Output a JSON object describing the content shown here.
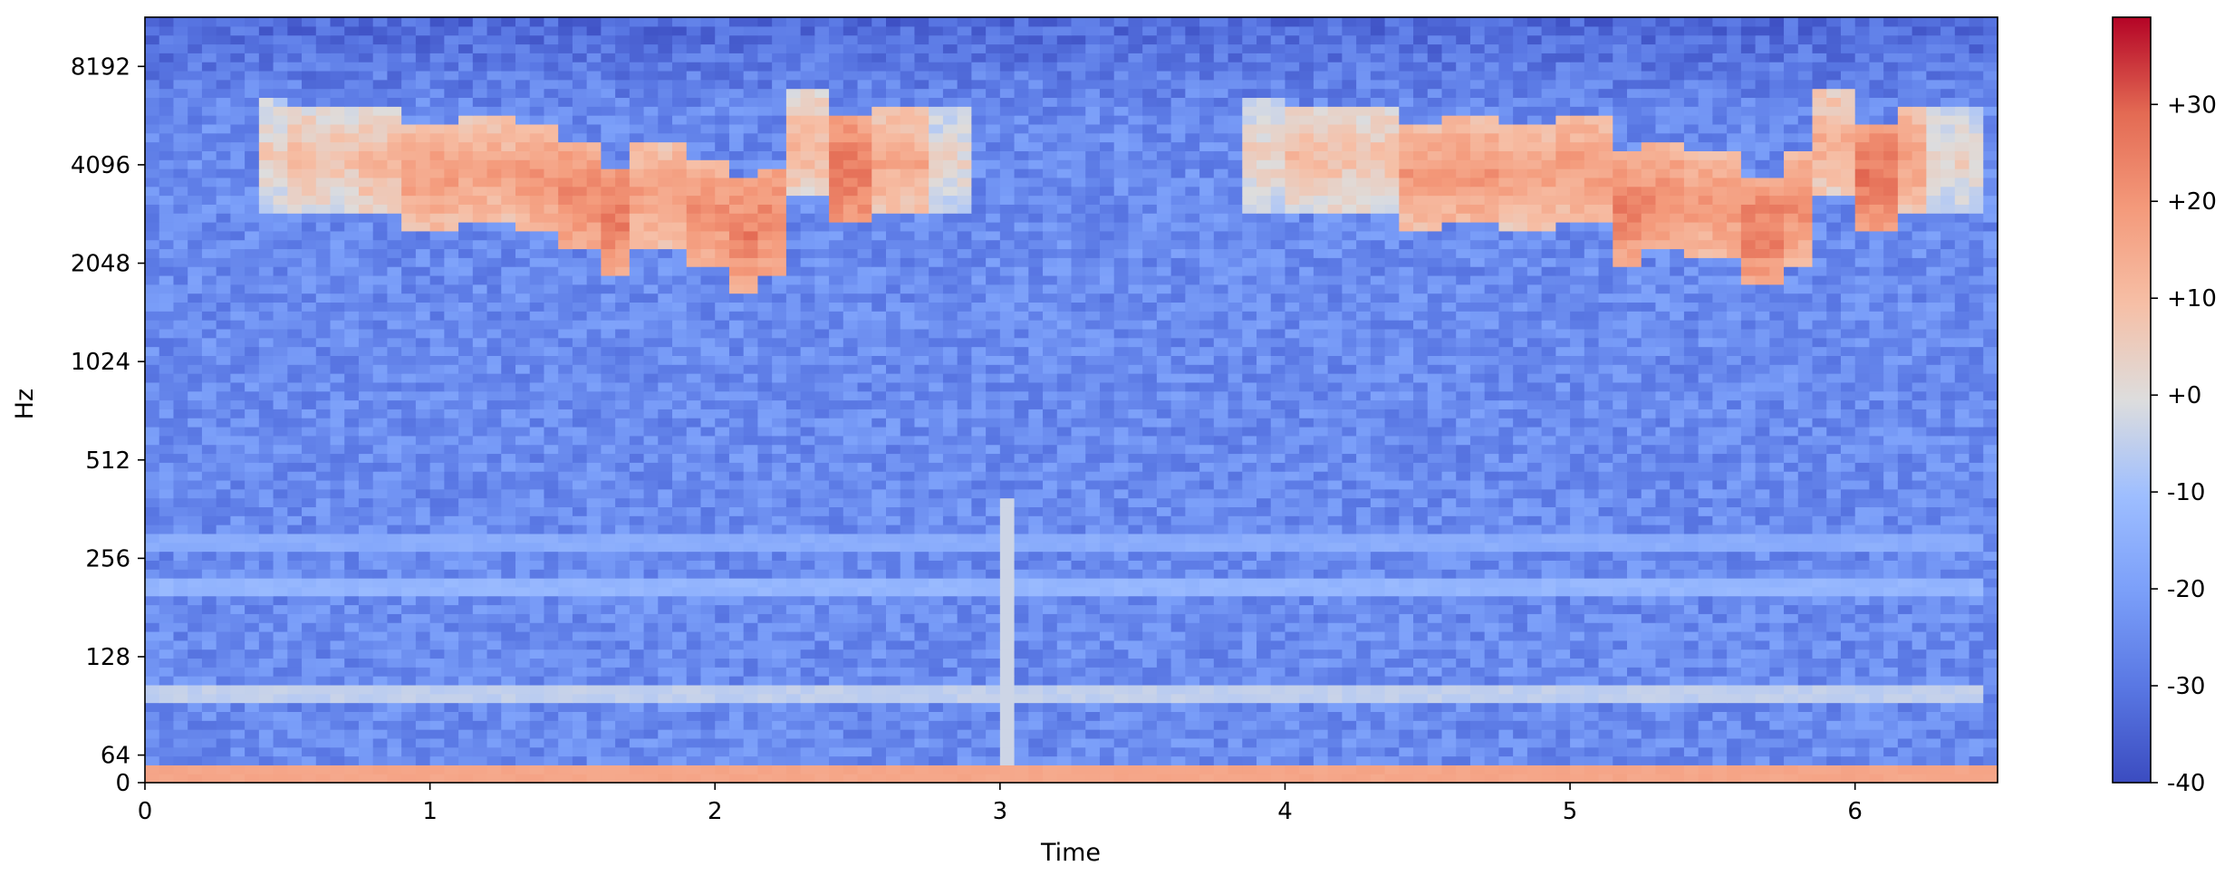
{
  "chart_data": {
    "type": "heatmap",
    "title": "",
    "xlabel": "Time",
    "ylabel": "Hz",
    "x_axis": {
      "range": [
        0,
        6.5
      ],
      "ticks": [
        0,
        1,
        2,
        3,
        4,
        5,
        6
      ],
      "tick_labels": [
        "0",
        "1",
        "2",
        "3",
        "4",
        "5",
        "6"
      ]
    },
    "y_axis": {
      "scale": "log2-with-linear-base",
      "range": [
        0,
        11585
      ],
      "ticks": [
        0,
        64,
        128,
        256,
        512,
        1024,
        2048,
        4096,
        8192
      ],
      "tick_labels": [
        "0",
        "64",
        "128",
        "256",
        "512",
        "1024",
        "2048",
        "4096",
        "8192"
      ]
    },
    "colorbar": {
      "colormap": "coolwarm",
      "unit": "dB",
      "range": [
        -40,
        39
      ],
      "ticks": [
        -40,
        -30,
        -20,
        -10,
        0,
        10,
        20,
        30
      ],
      "tick_labels": [
        "-40",
        "-30",
        "-20",
        "-10",
        "+0",
        "+10",
        "+20",
        "+30"
      ]
    },
    "grid": false,
    "features": {
      "background_db": -25,
      "low_frequency_band": {
        "hz": [
          0,
          40
        ],
        "db": 16
      },
      "hum_bands": [
        {
          "hz": 100,
          "db": -5
        },
        {
          "hz": 210,
          "db": -13
        },
        {
          "hz": 290,
          "db": -16
        }
      ],
      "onset_column": {
        "time": 3.02,
        "db": -3
      },
      "bursts": [
        {
          "time": [
            0.38,
            2.88
          ],
          "hz": [
            1700,
            6000
          ],
          "profile": [
            [
              0.4,
              4400,
              6
            ],
            [
              0.55,
              4300,
              10
            ],
            [
              0.7,
              4350,
              9
            ],
            [
              0.85,
              4200,
              12
            ],
            [
              1.0,
              3800,
              19
            ],
            [
              1.2,
              3900,
              17
            ],
            [
              1.4,
              3800,
              21
            ],
            [
              1.55,
              3300,
              23
            ],
            [
              1.65,
              2800,
              26
            ],
            [
              1.8,
              3300,
              18
            ],
            [
              1.95,
              2900,
              22
            ],
            [
              2.1,
              2500,
              25
            ],
            [
              2.2,
              2800,
              24
            ],
            [
              2.35,
              4700,
              12
            ],
            [
              2.5,
              3900,
              27
            ],
            [
              2.65,
              4200,
              16
            ],
            [
              2.85,
              4200,
              3
            ]
          ]
        },
        {
          "time": [
            3.85,
            6.45
          ],
          "hz": [
            1700,
            6000
          ],
          "profile": [
            [
              3.9,
              4400,
              5
            ],
            [
              4.1,
              4300,
              10
            ],
            [
              4.3,
              4350,
              9
            ],
            [
              4.45,
              3800,
              19
            ],
            [
              4.65,
              3900,
              20
            ],
            [
              4.85,
              3800,
              17
            ],
            [
              5.05,
              4000,
              19
            ],
            [
              5.2,
              3000,
              25
            ],
            [
              5.35,
              3300,
              22
            ],
            [
              5.5,
              3100,
              20
            ],
            [
              5.65,
              2600,
              26
            ],
            [
              5.8,
              3000,
              22
            ],
            [
              5.9,
              4800,
              14
            ],
            [
              6.05,
              3800,
              27
            ],
            [
              6.2,
              4300,
              18
            ],
            [
              6.35,
              4300,
              5
            ]
          ]
        }
      ]
    }
  }
}
